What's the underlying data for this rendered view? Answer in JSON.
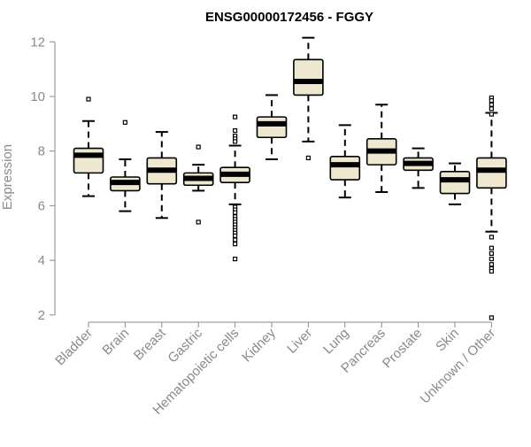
{
  "colors": {
    "box_fill": "#EEE8D0",
    "box_stroke": "#000000",
    "axis": "#8a8a8a",
    "text": "#8a8a8a",
    "title": "#000000"
  },
  "chart_data": {
    "type": "boxplot",
    "title": "ENSG00000172456 - FGGY",
    "xlabel": "",
    "ylabel": "Expression",
    "ylim": [
      1.8,
      12.3
    ],
    "yticks": [
      2,
      4,
      6,
      8,
      10,
      12
    ],
    "grid": false,
    "categories": [
      "Bladder",
      "Brain",
      "Breast",
      "Gastric",
      "Hematopoietic cells",
      "Kidney",
      "Liver",
      "Lung",
      "Pancreas",
      "Prostate",
      "Skin",
      "Unknown / Other"
    ],
    "boxes": [
      {
        "whisker_low": 6.35,
        "q1": 7.2,
        "median": 7.85,
        "q3": 8.1,
        "whisker_high": 9.1,
        "outliers": [
          9.9
        ]
      },
      {
        "whisker_low": 5.8,
        "q1": 6.55,
        "median": 6.85,
        "q3": 7.05,
        "whisker_high": 7.7,
        "outliers": [
          9.05
        ]
      },
      {
        "whisker_low": 5.55,
        "q1": 6.8,
        "median": 7.3,
        "q3": 7.75,
        "whisker_high": 8.7,
        "outliers": []
      },
      {
        "whisker_low": 6.55,
        "q1": 6.75,
        "median": 7.0,
        "q3": 7.2,
        "whisker_high": 7.5,
        "outliers": [
          8.15,
          5.4
        ]
      },
      {
        "whisker_low": 6.05,
        "q1": 6.85,
        "median": 7.15,
        "q3": 7.4,
        "whisker_high": 8.2,
        "outliers": [
          9.25,
          8.75,
          8.55,
          8.45,
          8.35,
          5.95,
          5.85,
          5.75,
          5.6,
          5.5,
          5.4,
          5.3,
          5.2,
          5.1,
          5.0,
          4.9,
          4.75,
          4.6,
          4.05
        ]
      },
      {
        "whisker_low": 7.7,
        "q1": 8.5,
        "median": 9.0,
        "q3": 9.25,
        "whisker_high": 10.05,
        "outliers": []
      },
      {
        "whisker_low": 8.35,
        "q1": 10.05,
        "median": 10.55,
        "q3": 11.35,
        "whisker_high": 12.15,
        "outliers": [
          7.75
        ]
      },
      {
        "whisker_low": 6.3,
        "q1": 6.95,
        "median": 7.5,
        "q3": 7.8,
        "whisker_high": 8.95,
        "outliers": []
      },
      {
        "whisker_low": 6.5,
        "q1": 7.5,
        "median": 8.0,
        "q3": 8.45,
        "whisker_high": 9.7,
        "outliers": []
      },
      {
        "whisker_low": 6.65,
        "q1": 7.3,
        "median": 7.55,
        "q3": 7.75,
        "whisker_high": 8.1,
        "outliers": []
      },
      {
        "whisker_low": 6.05,
        "q1": 6.45,
        "median": 6.95,
        "q3": 7.25,
        "whisker_high": 7.55,
        "outliers": []
      },
      {
        "whisker_low": 5.05,
        "q1": 6.65,
        "median": 7.3,
        "q3": 7.75,
        "whisker_high": 9.4,
        "outliers": [
          9.95,
          9.85,
          9.7,
          9.55,
          9.35,
          4.85,
          4.45,
          4.25,
          4.05,
          3.85,
          3.7,
          3.6,
          1.9
        ]
      }
    ]
  }
}
